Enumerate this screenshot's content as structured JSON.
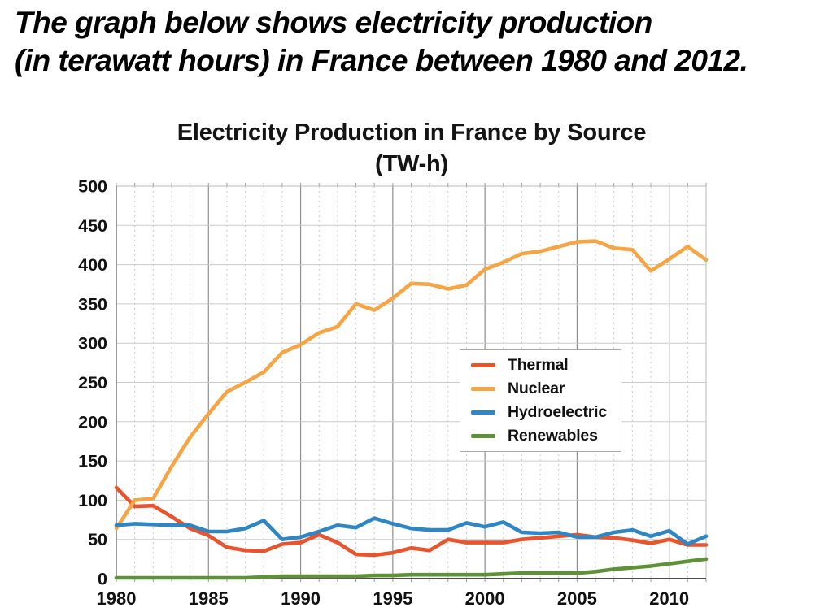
{
  "page_heading": {
    "line1": "The graph below shows electricity production",
    "line2": "(in terawatt hours) in France between 1980 and 2012."
  },
  "chart_data": {
    "type": "line",
    "title": "Electricity Production in France by Source",
    "title_line2": "(TW-h)",
    "xlabel": "",
    "ylabel": "",
    "x_range": [
      1980,
      2012
    ],
    "ylim": [
      0,
      500
    ],
    "y_ticks": [
      0,
      50,
      100,
      150,
      200,
      250,
      300,
      350,
      400,
      450,
      500
    ],
    "x_ticks": [
      1980,
      1985,
      1990,
      1995,
      2000,
      2005,
      2010
    ],
    "grid": "horizontal solid every 50; vertical dashed every year; vertical solid every 5 years",
    "legend_position": "center-right",
    "x": [
      1980,
      1981,
      1982,
      1983,
      1984,
      1985,
      1986,
      1987,
      1988,
      1989,
      1990,
      1991,
      1992,
      1993,
      1994,
      1995,
      1996,
      1997,
      1998,
      1999,
      2000,
      2001,
      2002,
      2003,
      2004,
      2005,
      2006,
      2007,
      2008,
      2009,
      2010,
      2011,
      2012
    ],
    "series": [
      {
        "name": "Thermal",
        "color": "#E8542E",
        "values": [
          116,
          92,
          93,
          79,
          64,
          55,
          40,
          36,
          35,
          44,
          46,
          56,
          46,
          31,
          30,
          33,
          39,
          36,
          50,
          46,
          46,
          46,
          50,
          52,
          54,
          56,
          53,
          52,
          49,
          45,
          50,
          43,
          43
        ]
      },
      {
        "name": "Nuclear",
        "color": "#F6A544",
        "values": [
          64,
          100,
          102,
          143,
          180,
          210,
          238,
          250,
          263,
          288,
          298,
          313,
          321,
          350,
          342,
          357,
          376,
          375,
          369,
          374,
          394,
          403,
          414,
          417,
          423,
          429,
          430,
          421,
          419,
          392,
          407,
          423,
          406
        ]
      },
      {
        "name": "Hydroelectric",
        "color": "#2E86C5",
        "values": [
          68,
          70,
          69,
          68,
          68,
          60,
          60,
          64,
          74,
          50,
          53,
          60,
          68,
          65,
          77,
          70,
          64,
          62,
          62,
          71,
          66,
          72,
          59,
          58,
          59,
          53,
          53,
          59,
          62,
          54,
          61,
          44,
          54
        ]
      },
      {
        "name": "Renewables",
        "color": "#5E9138",
        "values": [
          1,
          1,
          1,
          1,
          1,
          1,
          1,
          1,
          2,
          3,
          3,
          3,
          3,
          3,
          4,
          4,
          5,
          5,
          5,
          5,
          5,
          6,
          7,
          7,
          7,
          7,
          9,
          12,
          14,
          16,
          19,
          22,
          25
        ]
      }
    ],
    "colors": {
      "grid_major_h": "#cccccc",
      "grid_minor_v": "#c9c9c9",
      "grid_5yr_v": "#8f8f8f",
      "axis": "#4d4d4d",
      "border": "#b8b8b8",
      "tick_label": "#111111"
    }
  }
}
